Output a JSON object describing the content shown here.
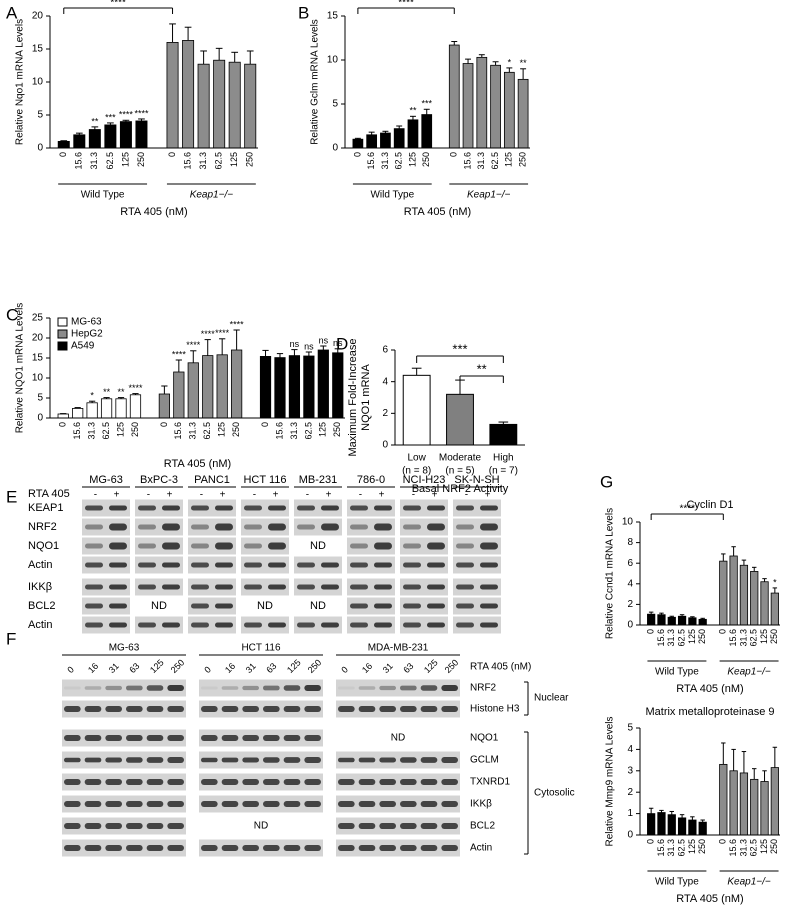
{
  "chart_data": [
    {
      "type": "bar",
      "panel": "A",
      "ylabel": "Relative Nqo1 mRNA Levels",
      "xlabel": "RTA 405 (nM)",
      "ylim": [
        0,
        20
      ],
      "yticks": [
        0,
        5,
        10,
        15,
        20
      ],
      "bracket": "****",
      "group_axis": true,
      "series": [
        {
          "name": "Wild Type",
          "color": "#000000",
          "categories": [
            "0",
            "15.6",
            "31.3",
            "62.5",
            "125",
            "250"
          ],
          "values": [
            1,
            2,
            2.8,
            3.5,
            4,
            4.1
          ],
          "errors": [
            0.1,
            0.25,
            0.4,
            0.3,
            0.2,
            0.3
          ],
          "significance": [
            null,
            null,
            "**",
            "***",
            "****",
            "****"
          ]
        },
        {
          "name": "Keap1−/−",
          "color": "#8c8c8c",
          "categories": [
            "0",
            "15.6",
            "31.3",
            "62.5",
            "125",
            "250"
          ],
          "values": [
            16,
            16.3,
            12.7,
            13.3,
            13,
            12.7
          ],
          "errors": [
            2.8,
            2,
            2,
            1.8,
            1.5,
            2
          ],
          "significance": [
            null,
            null,
            null,
            null,
            null,
            null
          ]
        }
      ]
    },
    {
      "type": "bar",
      "panel": "B",
      "ylabel": "Relative Gclm mRNA Levels",
      "xlabel": "RTA 405 (nM)",
      "ylim": [
        0,
        15
      ],
      "yticks": [
        0,
        5,
        10,
        15
      ],
      "bracket": "****",
      "group_axis": true,
      "series": [
        {
          "name": "Wild Type",
          "color": "#000000",
          "categories": [
            "0",
            "15.6",
            "31.3",
            "62.5",
            "125",
            "250"
          ],
          "values": [
            1,
            1.5,
            1.7,
            2.2,
            3.2,
            3.8
          ],
          "errors": [
            0.1,
            0.3,
            0.2,
            0.3,
            0.4,
            0.6
          ],
          "significance": [
            null,
            null,
            null,
            null,
            "**",
            "***"
          ]
        },
        {
          "name": "Keap1−/−",
          "color": "#8c8c8c",
          "categories": [
            "0",
            "15.6",
            "31.3",
            "62.5",
            "125",
            "250"
          ],
          "values": [
            11.7,
            9.6,
            10.3,
            9.4,
            8.6,
            7.8
          ],
          "errors": [
            0.4,
            0.5,
            0.3,
            0.4,
            0.5,
            1.2
          ],
          "significance": [
            null,
            null,
            null,
            null,
            "*",
            "**"
          ]
        }
      ]
    },
    {
      "type": "bar",
      "panel": "C",
      "ylabel": "Relative NQO1 mRNA Levels",
      "xlabel": "RTA 405 (nM)",
      "ylim": [
        0,
        25
      ],
      "yticks": [
        0,
        5,
        10,
        15,
        20,
        25
      ],
      "legend": "top-left",
      "series": [
        {
          "name": "MG-63",
          "color": "#ffffff",
          "categories": [
            "0",
            "15.6",
            "31.3",
            "62.5",
            "125",
            "250"
          ],
          "values": [
            1,
            2.4,
            3.8,
            4.8,
            4.8,
            5.8
          ],
          "errors": [
            0.1,
            0.2,
            0.4,
            0.3,
            0.3,
            0.3
          ],
          "significance": [
            null,
            null,
            "*",
            "**",
            "**",
            "****"
          ]
        },
        {
          "name": "HepG2",
          "color": "#8c8c8c",
          "categories": [
            "0",
            "15.6",
            "31.3",
            "62.5",
            "125",
            "250"
          ],
          "values": [
            6,
            11.5,
            13.8,
            15.6,
            15.8,
            17
          ],
          "errors": [
            2,
            3,
            3,
            4,
            4,
            5
          ],
          "significance": [
            null,
            "****",
            "****",
            "****",
            "****",
            "****"
          ]
        },
        {
          "name": "A549",
          "color": "#000000",
          "categories": [
            "0",
            "15.6",
            "31.3",
            "62.5",
            "125",
            "250"
          ],
          "values": [
            15.4,
            15.1,
            15.6,
            15.5,
            17,
            16.3
          ],
          "errors": [
            1.5,
            1,
            1.5,
            1,
            1,
            1
          ],
          "significance": [
            null,
            null,
            "ns",
            "ns",
            "ns",
            "ns"
          ]
        }
      ]
    },
    {
      "type": "bar",
      "panel": "D",
      "ylabel": [
        "Maximum Fold-Increase",
        "NQO1 mRNA"
      ],
      "xlabel": "Basal NRF2 Activity",
      "ylim": [
        0,
        6
      ],
      "yticks": [
        0,
        2,
        4,
        6
      ],
      "brackets": [
        "***",
        "**"
      ],
      "categories": [
        "Low",
        "Moderate",
        "High"
      ],
      "category_notes": [
        "(n = 8)",
        "(n = 5)",
        "(n = 7)"
      ],
      "values": [
        4.4,
        3.2,
        1.3
      ],
      "errors": [
        0.45,
        0.9,
        0.15
      ],
      "colors": [
        "#ffffff",
        "#808080",
        "#000000"
      ]
    },
    {
      "type": "bar",
      "panel": "G",
      "title": "Cyclin D1",
      "ylabel": "Relative Ccnd1 mRNA Levels",
      "xlabel": "RTA 405 (nM)",
      "ylim": [
        0,
        10
      ],
      "yticks": [
        0,
        2,
        4,
        6,
        8,
        10
      ],
      "bracket": "****",
      "group_axis": true,
      "series": [
        {
          "name": "Wild Type",
          "color": "#000000",
          "categories": [
            "0",
            "15.6",
            "31.3",
            "62.5",
            "125",
            "250"
          ],
          "values": [
            1.05,
            1,
            0.75,
            0.85,
            0.7,
            0.55
          ],
          "errors": [
            0.2,
            0.15,
            0.1,
            0.15,
            0.1,
            0.1
          ],
          "significance": [
            null,
            null,
            null,
            null,
            null,
            null
          ]
        },
        {
          "name": "Keap1−/−",
          "color": "#8c8c8c",
          "categories": [
            "0",
            "15.6",
            "31.3",
            "62.5",
            "125",
            "250"
          ],
          "values": [
            6.2,
            6.7,
            5.8,
            5.2,
            4.2,
            3.1
          ],
          "errors": [
            0.7,
            0.9,
            0.5,
            0.4,
            0.3,
            0.5
          ],
          "significance": [
            null,
            null,
            null,
            null,
            null,
            "*"
          ]
        }
      ]
    },
    {
      "type": "bar",
      "title": "Matrix metalloproteinase 9",
      "ylabel": "Relative Mmp9 mRNA Levels",
      "xlabel": "RTA 405 (nM)",
      "ylim": [
        0,
        5
      ],
      "yticks": [
        0,
        1,
        2,
        3,
        4,
        5
      ],
      "group_axis": true,
      "series": [
        {
          "name": "Wild Type",
          "color": "#000000",
          "categories": [
            "0",
            "15.6",
            "31.3",
            "62.5",
            "125",
            "250"
          ],
          "values": [
            1,
            1.05,
            0.95,
            0.8,
            0.7,
            0.6
          ],
          "errors": [
            0.25,
            0.1,
            0.15,
            0.15,
            0.15,
            0.1
          ],
          "significance": [
            null,
            null,
            null,
            null,
            null,
            null
          ]
        },
        {
          "name": "Keap1−/−",
          "color": "#8c8c8c",
          "categories": [
            "0",
            "15.6",
            "31.3",
            "62.5",
            "125",
            "250"
          ],
          "values": [
            3.3,
            3,
            2.9,
            2.6,
            2.5,
            3.15
          ],
          "errors": [
            1,
            1,
            1,
            0.5,
            0.5,
            0.95
          ],
          "significance": [
            null,
            null,
            null,
            null,
            null,
            null
          ]
        }
      ]
    }
  ],
  "blots": {
    "E": {
      "panel": "E",
      "treatment": "RTA 405",
      "levels": [
        "-",
        "+"
      ],
      "cell_lines": [
        "MG-63",
        "BxPC-3",
        "PANC1",
        "HCT 116",
        "MB-231",
        "786-0",
        "NCI-H23",
        "SK-N-SH"
      ],
      "rows_top": [
        "KEAP1",
        "NRF2",
        "NQO1",
        "Actin"
      ],
      "rows_bottom": [
        "IKKβ",
        "BCL2",
        "Actin"
      ],
      "not_detected": "ND"
    },
    "F": {
      "panel": "F",
      "cell_lines": [
        "MG-63",
        "HCT 116",
        "MDA-MB-231"
      ],
      "doses": [
        "0",
        "16",
        "31",
        "63",
        "125",
        "250"
      ],
      "dose_label": "RTA 405 (nM)",
      "rows_nuclear": [
        "NRF2",
        "Histone H3"
      ],
      "rows_cytosolic": [
        "NQO1",
        "GCLM",
        "TXNRD1",
        "IKKβ",
        "BCL2",
        "Actin"
      ],
      "fractions": [
        "Nuclear",
        "Cytosolic"
      ],
      "not_detected": "ND"
    }
  }
}
